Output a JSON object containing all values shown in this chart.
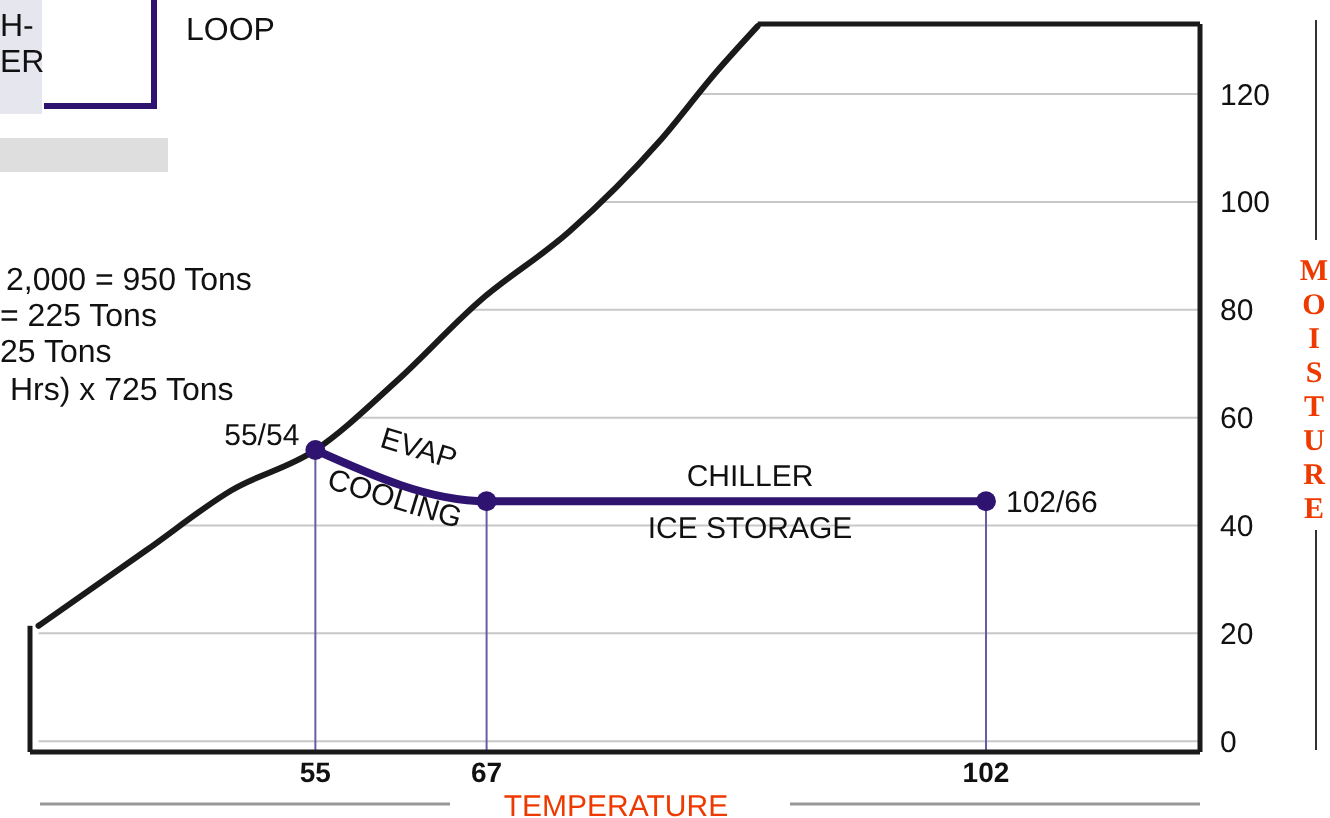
{
  "chart_data": {
    "type": "line",
    "xlabel": "TEMPERATURE",
    "ylabel": "MOISTURE",
    "xlim": [
      35,
      117
    ],
    "xticks": [
      55,
      67,
      102
    ],
    "ylim": [
      -2,
      133
    ],
    "yticks": [
      0,
      20,
      40,
      60,
      80,
      100,
      120
    ],
    "grid": "y",
    "series": [
      {
        "color": "#1a1a1a",
        "marker": "none",
        "x": [
          35.6,
          43.2,
          49.1,
          55,
          60.7,
          66.5,
          72.8,
          79.1,
          83.1,
          86
        ],
        "values": [
          21.4,
          35.5,
          46.5,
          54,
          66.8,
          81.6,
          94.5,
          111.2,
          124.1,
          132.6
        ]
      },
      {
        "color": "#2e1470",
        "marker": "circle",
        "x": [
          55,
          67,
          102
        ],
        "values": [
          54,
          44.5,
          44.5
        ]
      }
    ],
    "ref_lines": [
      {
        "axis": "x",
        "value": 55,
        "color": "#6a5aa8"
      },
      {
        "axis": "x",
        "value": 67,
        "color": "#6a5aa8"
      },
      {
        "axis": "x",
        "value": 102,
        "color": "#6a5aa8"
      }
    ],
    "annotations": [
      "H-",
      "ER",
      "LOOP",
      "2,000 = 950 Tons",
      "= 225 Tons",
      "25 Tons",
      "Hrs) x 725 Tons",
      {
        "text": "55/54",
        "x": 55,
        "y": 54
      },
      {
        "text": "102/66",
        "x": 102,
        "y": 44.5
      },
      "EVAP",
      "COOLING",
      "CHILLER",
      "ICE STORAGE"
    ]
  }
}
